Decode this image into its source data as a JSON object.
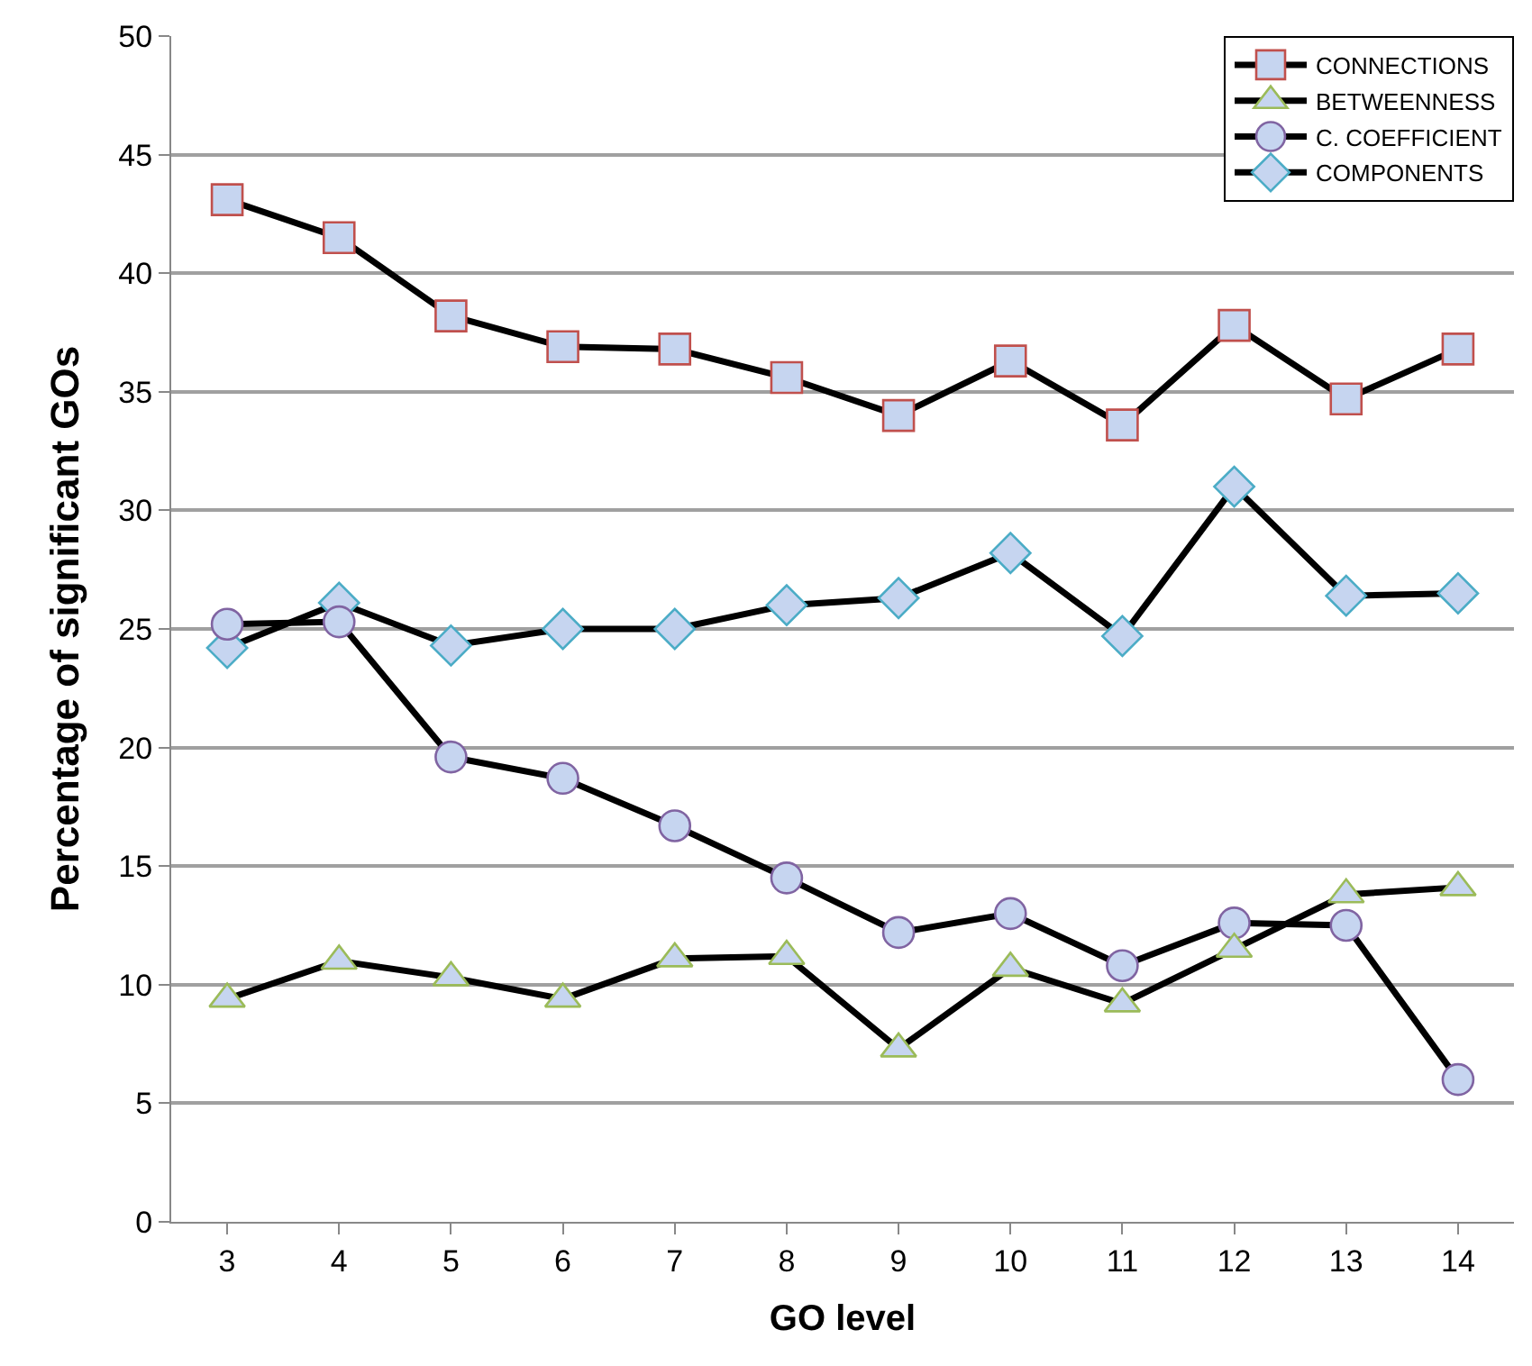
{
  "chart_data": {
    "type": "line",
    "xlabel": "GO level",
    "ylabel": "Percentage of significant GOs",
    "x": [
      3,
      4,
      5,
      6,
      7,
      8,
      9,
      10,
      11,
      12,
      13,
      14
    ],
    "series": [
      {
        "name": "CONNECTIONS",
        "color": "#c0504d",
        "marker": "square",
        "values": [
          43.1,
          41.5,
          38.2,
          36.9,
          36.8,
          35.6,
          34.0,
          36.3,
          33.6,
          37.8,
          34.7,
          36.8
        ]
      },
      {
        "name": "BETWEENNESS",
        "color": "#9bbb59",
        "marker": "triangle",
        "values": [
          9.4,
          11.0,
          10.3,
          9.4,
          11.1,
          11.2,
          7.3,
          10.7,
          9.2,
          11.5,
          13.8,
          14.1
        ]
      },
      {
        "name": "C. COEFFICIENT",
        "color": "#8064a2",
        "marker": "circle",
        "values": [
          25.2,
          25.3,
          19.6,
          18.7,
          16.7,
          14.5,
          12.2,
          13.0,
          10.8,
          12.6,
          12.5,
          6.0
        ]
      },
      {
        "name": "COMPONENTS",
        "color": "#4bacc6",
        "marker": "diamond",
        "values": [
          24.2,
          26.1,
          24.3,
          25.0,
          25.0,
          26.0,
          26.3,
          28.2,
          24.7,
          31.0,
          26.4,
          26.5
        ]
      }
    ],
    "xlim": [
      2.5,
      14.5
    ],
    "xticks": [
      3,
      4,
      5,
      6,
      7,
      8,
      9,
      10,
      11,
      12,
      13,
      14
    ],
    "ylim": [
      0,
      50
    ],
    "yticks": [
      0,
      5,
      10,
      15,
      20,
      25,
      30,
      35,
      40,
      45,
      50
    ],
    "grid": "y",
    "legend": "top right",
    "line_style": "solid"
  }
}
